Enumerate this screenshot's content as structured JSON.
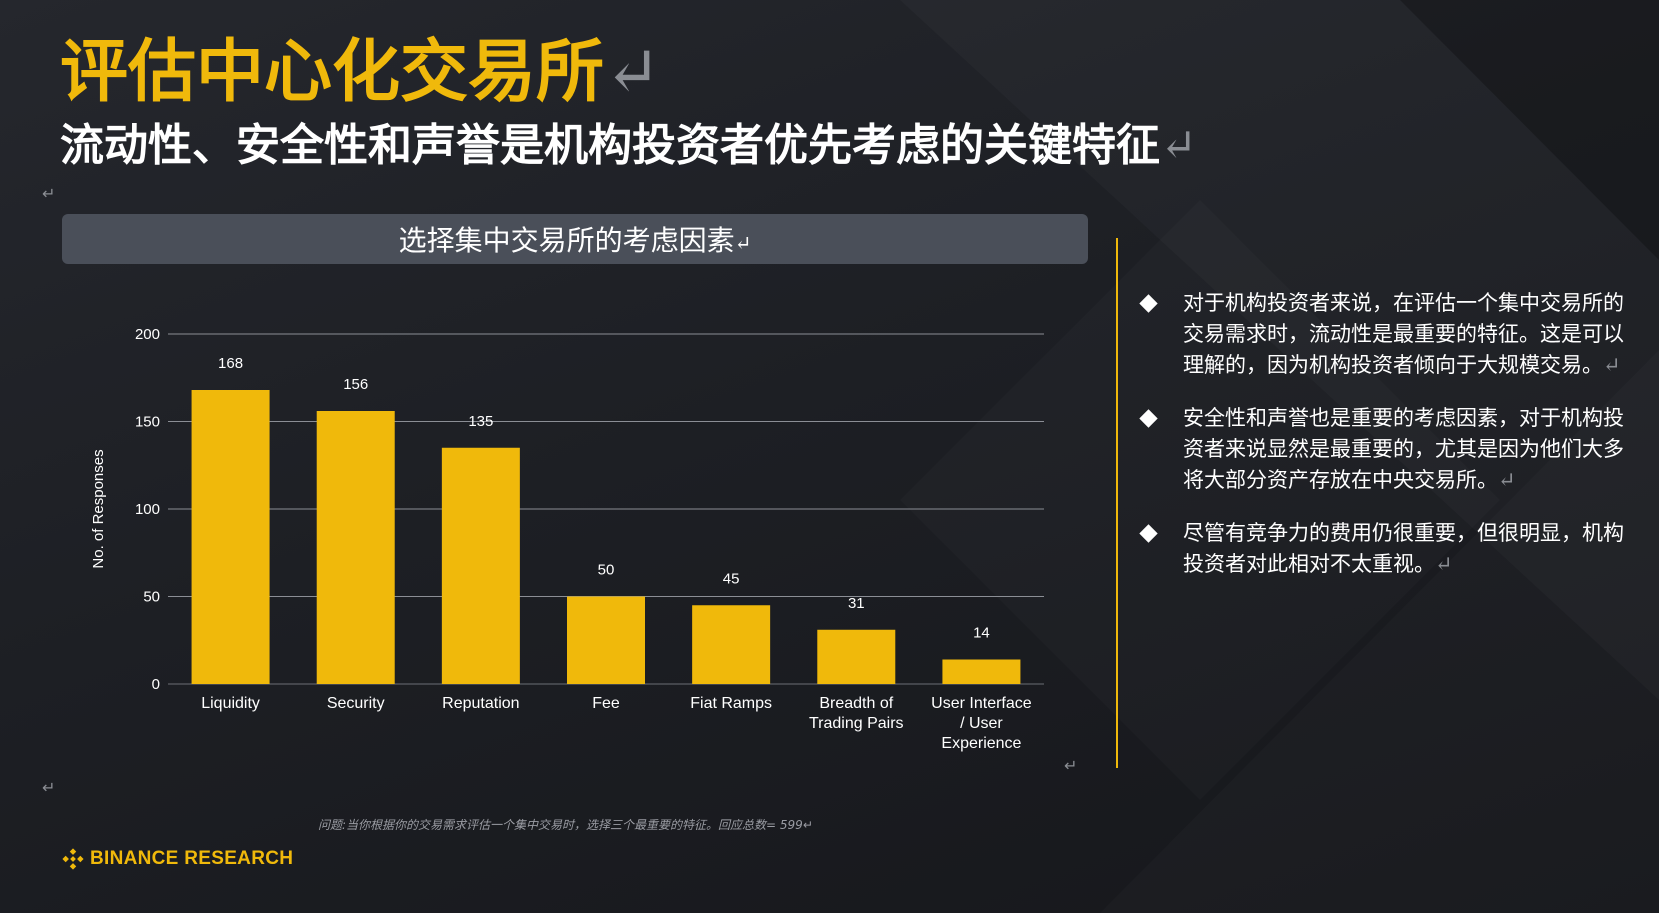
{
  "slide": {
    "title": "评估中心化交易所",
    "subtitle": "流动性、安全性和声誉是机构投资者优先考虑的关键特征",
    "return_mark": "↵"
  },
  "chart_header": "选择集中交易所的考虑因素",
  "chart_data": {
    "type": "bar",
    "categories": [
      "Liquidity",
      "Security",
      "Reputation",
      "Fee",
      "Fiat Ramps",
      "Breadth of Trading Pairs",
      "User Interface / User Experience"
    ],
    "category_lines": [
      [
        "Liquidity"
      ],
      [
        "Security"
      ],
      [
        "Reputation"
      ],
      [
        "Fee"
      ],
      [
        "Fiat Ramps"
      ],
      [
        "Breadth of",
        "Trading Pairs"
      ],
      [
        "User Interface",
        "/ User",
        "Experience"
      ]
    ],
    "values": [
      168,
      156,
      135,
      50,
      45,
      31,
      14
    ],
    "ylabel": "No. of Responses",
    "ylim": [
      0,
      200
    ],
    "yticks": [
      0,
      50,
      100,
      150,
      200
    ],
    "grid": true,
    "bar_color": "#f0b90b"
  },
  "bullets": [
    "对于机构投资者来说，在评估一个集中交易所的交易需求时，流动性是最重要的特征。这是可以理解的，因为机构投资者倾向于大规模交易。",
    "安全性和声誉也是重要的考虑因素，对于机构投资者来说显然是最重要的，尤其是因为他们大多将大部分资产存放在中央交易所。",
    "尽管有竞争力的费用仍很重要，但很明显，机构投资者对此相对不太重视。"
  ],
  "footnote": "问题:当你根据你的交易需求评估一个集中交易时，选择三个最重要的特征。回应总数= 599",
  "brand": {
    "name": "BINANCE RESEARCH",
    "accent": "#f0b90b"
  }
}
